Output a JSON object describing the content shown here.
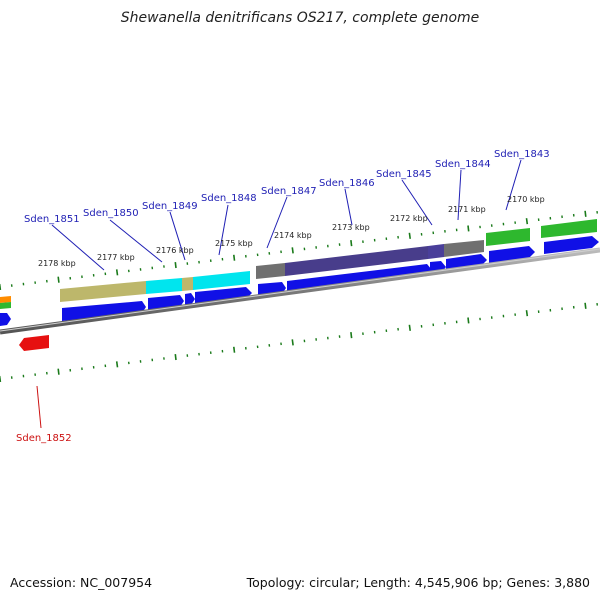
{
  "title": "Shewanella denitrificans OS217, complete genome",
  "accession_label": "Accession: NC_007954",
  "stats_label": "Topology: circular; Length: 4,545,906 bp; Genes: 3,880",
  "colors": {
    "backbone": "#7f7f7f",
    "cds": "#1010e6",
    "cds_reverse": "#e61010",
    "label": "#1f1fb4",
    "label_reverse": "#cc1111",
    "ticks": "#1a7a1a",
    "cog_khaki": "#bdb76b",
    "cog_cyan": "#00e5ee",
    "cog_purple": "#483d8b",
    "cog_gray": "#707070",
    "cog_green": "#2eb82e",
    "cog_orange": "#ff8c00"
  },
  "tick_labels": [
    "2178 kbp",
    "2177 kbp",
    "2176 kbp",
    "2175 kbp",
    "2174 kbp",
    "2173 kbp",
    "2172 kbp",
    "2171 kbp",
    "2170 kbp"
  ],
  "genes": [
    "Sden_1851",
    "Sden_1850",
    "Sden_1849",
    "Sden_1848",
    "Sden_1847",
    "Sden_1846",
    "Sden_1845",
    "Sden_1844",
    "Sden_1843"
  ],
  "reverse_genes": [
    "Sden_1852"
  ]
}
